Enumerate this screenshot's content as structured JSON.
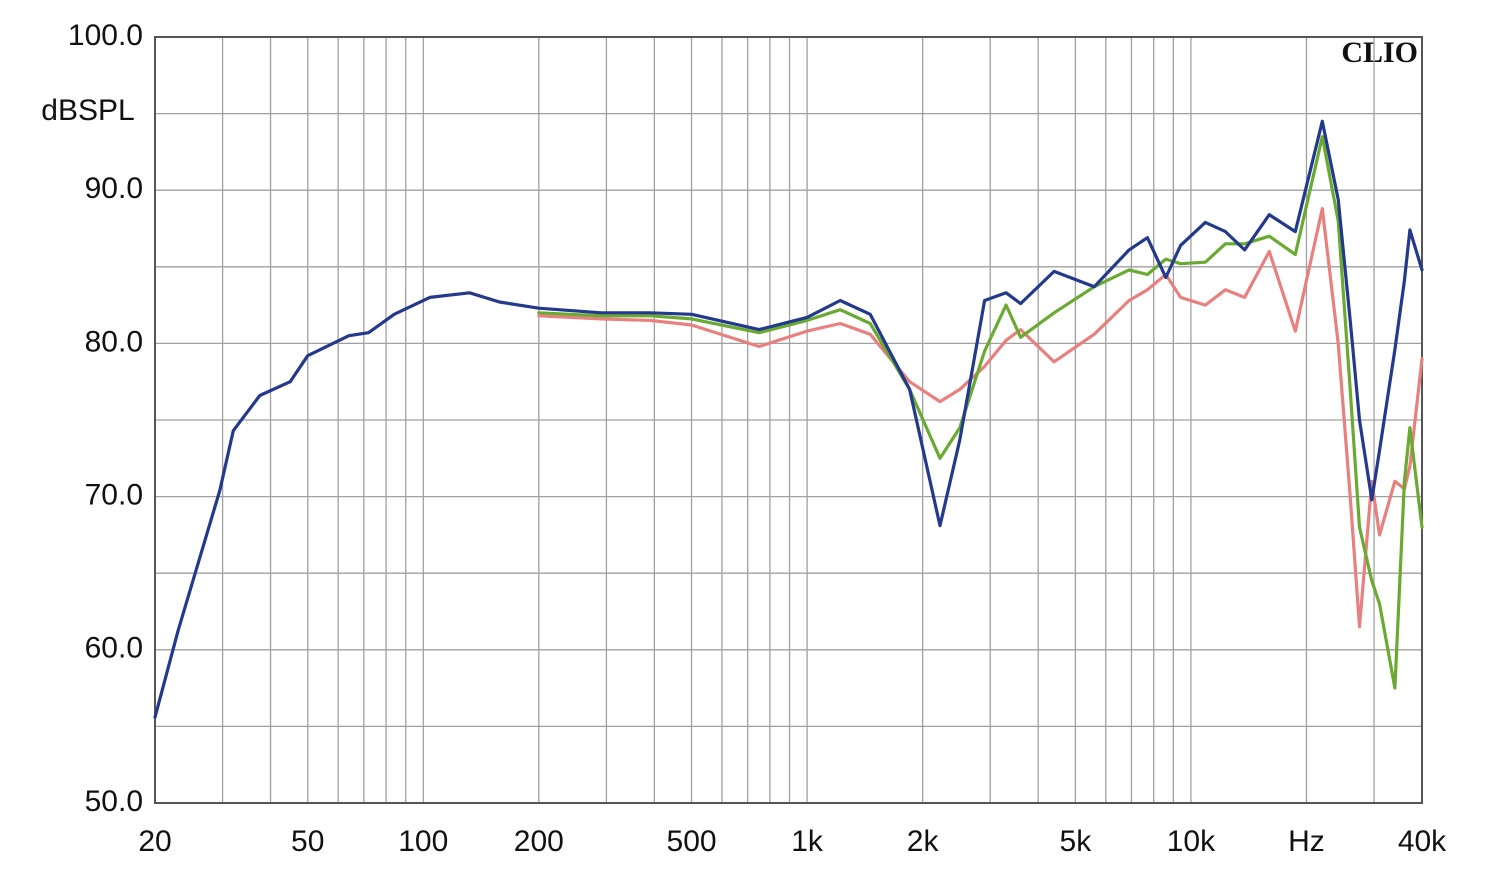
{
  "chart_data": {
    "type": "line",
    "y_label": "dBSPL",
    "annotation": "CLIO",
    "xscale": "log",
    "grid": true,
    "xlim": [
      20,
      40000
    ],
    "ylim": [
      50,
      100
    ],
    "xticks": [
      20,
      50,
      100,
      200,
      500,
      {
        "value": 1000,
        "label": "1k"
      },
      {
        "value": 2000,
        "label": "2k"
      },
      {
        "value": 5000,
        "label": "5k"
      },
      {
        "value": 10000,
        "label": "10k"
      },
      {
        "value": 20000,
        "label": "Hz"
      },
      {
        "value": 40000,
        "label": "40k"
      }
    ],
    "x_minor_grid": [
      30,
      40,
      60,
      70,
      80,
      90,
      300,
      400,
      600,
      700,
      800,
      900,
      3000,
      4000,
      6000,
      7000,
      8000,
      9000,
      30000
    ],
    "yticks": [
      {
        "value": 50,
        "label": "50.0"
      },
      {
        "value": 60,
        "label": "60.0"
      },
      {
        "value": 70,
        "label": "70.0"
      },
      {
        "value": 80,
        "label": "80.0"
      },
      {
        "value": 90,
        "label": "90.0"
      },
      {
        "value": 100,
        "label": "100.0"
      }
    ],
    "y_minor_grid": [
      55,
      65,
      75,
      85,
      95
    ],
    "x": [
      20,
      23,
      29.5,
      32,
      37.5,
      45,
      50,
      64,
      72,
      84,
      104,
      132,
      158,
      200,
      290,
      390,
      500,
      750,
      1000,
      1220,
      1460,
      1850,
      2220,
      2500,
      2900,
      3300,
      3600,
      4400,
      5600,
      6900,
      7700,
      8600,
      9400,
      10900,
      12300,
      13800,
      16000,
      18700,
      22000,
      24200,
      26000,
      27500,
      29600,
      31000,
      34000,
      36000,
      37200,
      40000
    ],
    "series": [
      {
        "color": "#e88080",
        "values": [
          null,
          null,
          null,
          null,
          null,
          null,
          null,
          null,
          null,
          null,
          null,
          null,
          null,
          81.8,
          81.6,
          81.5,
          81.2,
          79.8,
          80.8,
          81.3,
          80.6,
          77.5,
          76.2,
          77.0,
          78.5,
          80.2,
          80.9,
          78.8,
          80.6,
          82.8,
          83.5,
          84.5,
          83.0,
          82.5,
          83.5,
          83.0,
          86.0,
          80.8,
          88.8,
          80.0,
          70.0,
          61.5,
          71.0,
          67.5,
          71.0,
          70.5,
          72.0,
          79.0
        ]
      },
      {
        "color": "#6aaa32",
        "values": [
          null,
          null,
          null,
          null,
          null,
          null,
          null,
          null,
          null,
          null,
          null,
          null,
          null,
          82.0,
          81.8,
          81.8,
          81.6,
          80.7,
          81.5,
          82.2,
          81.3,
          77.0,
          72.5,
          74.5,
          79.5,
          82.5,
          80.4,
          82.0,
          83.7,
          84.8,
          84.5,
          85.5,
          85.2,
          85.3,
          86.5,
          86.5,
          87.0,
          85.8,
          93.5,
          88.0,
          77.0,
          68.0,
          64.5,
          63.0,
          57.5,
          71.0,
          74.5,
          68.0
        ]
      },
      {
        "color": "#23398c",
        "values": [
          55.6,
          61.3,
          70.4,
          74.3,
          76.6,
          77.5,
          79.2,
          80.5,
          80.7,
          81.9,
          83.0,
          83.3,
          82.7,
          82.3,
          82.0,
          82.0,
          81.9,
          80.9,
          81.7,
          82.8,
          81.9,
          77.0,
          68.1,
          73.7,
          82.8,
          83.3,
          82.6,
          84.7,
          83.7,
          86.1,
          86.9,
          84.3,
          86.4,
          87.9,
          87.3,
          86.1,
          88.4,
          87.3,
          94.5,
          89.4,
          81.5,
          75.0,
          69.8,
          73.0,
          79.6,
          84.1,
          87.4,
          84.8
        ]
      }
    ]
  }
}
